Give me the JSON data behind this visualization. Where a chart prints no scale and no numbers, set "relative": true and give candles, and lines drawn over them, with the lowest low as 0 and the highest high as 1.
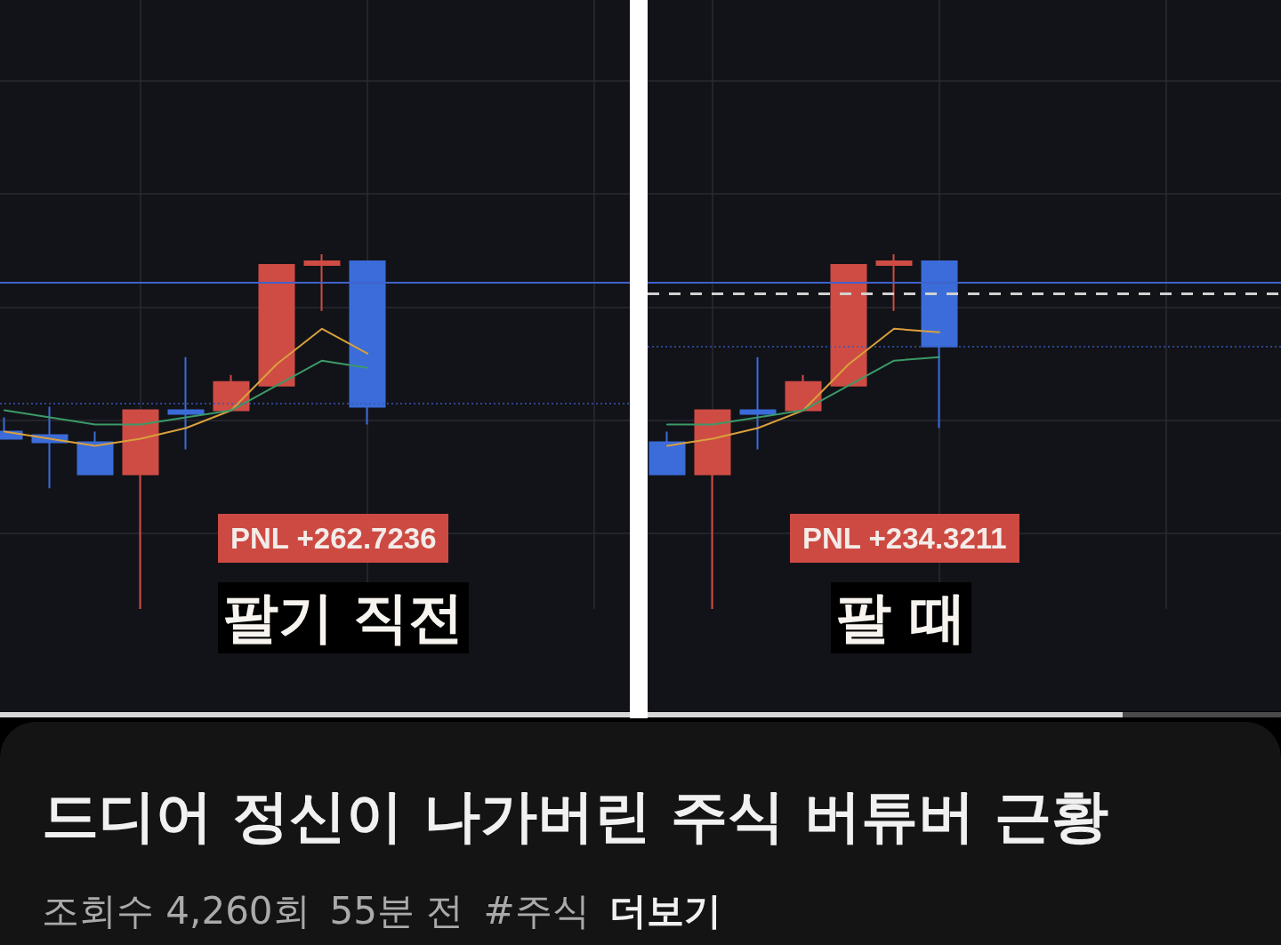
{
  "chart_data": [
    {
      "type": "candlestick",
      "relative": true,
      "categories": [
        null,
        null,
        null,
        null,
        null,
        null,
        null,
        null,
        null,
        null,
        null,
        null,
        null,
        null
      ],
      "ohlc": [
        [
          0.5,
          0.54,
          0.48,
          0.48
        ],
        [
          0.49,
          0.57,
          0.34,
          0.47
        ],
        [
          0.47,
          0.5,
          0.38,
          0.38
        ],
        [
          0.38,
          0.56,
          0,
          0.56
        ],
        [
          0.56,
          0.71,
          0.45,
          0.55
        ],
        [
          0.56,
          0.66,
          0.56,
          0.64
        ],
        [
          0.63,
          0.97,
          0.63,
          0.97
        ],
        [
          0.97,
          1,
          0.84,
          0.98
        ],
        [
          0.98,
          0.98,
          0.52,
          0.57
        ],
        null,
        null,
        null,
        null,
        null
      ],
      "colors": [
        "#3b6cd9",
        "#3b6cd9",
        "#3b6cd9",
        "#cf4c44",
        "#3b6cd9",
        "#cf4c44",
        "#cf4c44",
        "#cf4c44",
        "#3b6cd9",
        null,
        null,
        null,
        null,
        null
      ],
      "series": [
        {
          "type": "line",
          "color": "#d9a03c",
          "values": [
            0.5,
            0.48,
            0.46,
            0.48,
            0.51,
            0.56,
            0.69,
            0.79,
            0.72,
            null,
            null,
            null,
            null,
            null
          ]
        },
        {
          "type": "line",
          "color": "#3b9a68",
          "values": [
            0.56,
            0.54,
            0.52,
            0.52,
            0.54,
            0.56,
            0.63,
            0.7,
            0.68,
            null,
            null,
            null,
            null,
            null
          ]
        }
      ],
      "ref_lines": [
        {
          "axis": "y",
          "value": 0.92,
          "color": "#3f62cc",
          "line_style": "solid"
        },
        {
          "axis": "y",
          "value": 0.58,
          "color": "#3a55b5",
          "line_style": "dotted"
        }
      ],
      "annotations": [
        "PNL +262.7236",
        "팔기 직전"
      ],
      "grid": true,
      "marker": "none"
    },
    {
      "type": "candlestick",
      "relative": true,
      "categories": [
        null,
        null,
        null,
        null,
        null,
        null,
        null,
        null,
        null,
        null,
        null,
        null,
        null,
        null
      ],
      "ohlc": [
        [
          0.47,
          0.5,
          0.38,
          0.38
        ],
        [
          0.38,
          0.56,
          0,
          0.56
        ],
        [
          0.56,
          0.71,
          0.45,
          0.55
        ],
        [
          0.56,
          0.66,
          0.56,
          0.64
        ],
        [
          0.63,
          0.97,
          0.63,
          0.97
        ],
        [
          0.97,
          1,
          0.84,
          0.98
        ],
        [
          0.98,
          0.98,
          0.51,
          0.74
        ],
        null,
        null,
        null,
        null,
        null,
        null,
        null
      ],
      "colors": [
        "#3b6cd9",
        "#cf4c44",
        "#3b6cd9",
        "#cf4c44",
        "#cf4c44",
        "#cf4c44",
        "#3b6cd9",
        null,
        null,
        null,
        null,
        null,
        null,
        null
      ],
      "series": [
        {
          "type": "line",
          "color": "#d9a03c",
          "values": [
            0.46,
            0.48,
            0.51,
            0.56,
            0.69,
            0.79,
            0.78,
            null,
            null,
            null,
            null,
            null,
            null,
            null
          ]
        },
        {
          "type": "line",
          "color": "#3b9a68",
          "values": [
            0.52,
            0.52,
            0.54,
            0.56,
            0.63,
            0.7,
            0.71,
            null,
            null,
            null,
            null,
            null,
            null,
            null
          ]
        }
      ],
      "ref_lines": [
        {
          "axis": "y",
          "value": 0.92,
          "color": "#3f62cc",
          "line_style": "solid"
        },
        {
          "axis": "y",
          "value": 0.89,
          "color": "#d0d0d0",
          "line_style": "dashed"
        },
        {
          "axis": "y",
          "value": 0.74,
          "color": "#3a55b5",
          "line_style": "dotted"
        }
      ],
      "annotations": [
        "PNL +234.3211",
        "팔 때"
      ],
      "grid": true,
      "marker": "none"
    },
    {
      "type": "other",
      "title": "드디어 정신이 나가버린 주식 버튜버 근황",
      "annotations": [
        "조회수 4,260회",
        "55분 전",
        "#주식",
        "더보기"
      ]
    }
  ]
}
